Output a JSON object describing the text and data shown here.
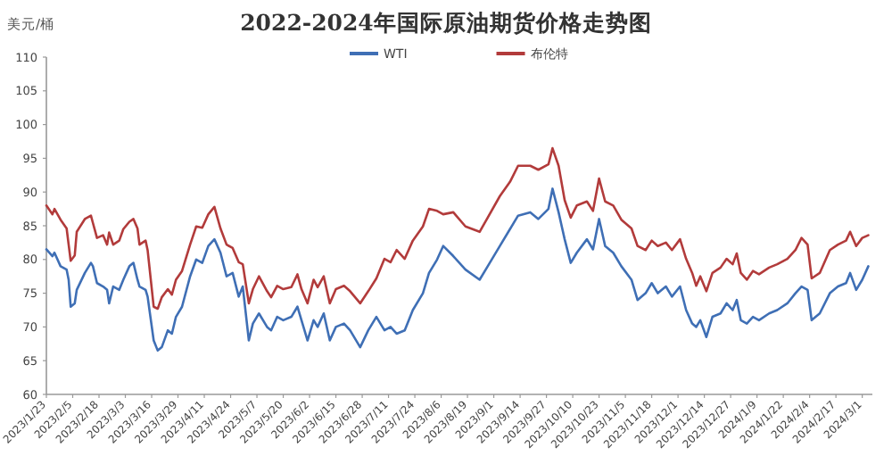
{
  "chart_data": {
    "type": "line",
    "title": "2022-2024年国际原油期货价格走势图",
    "ylabel": "美元/桶",
    "x": [
      "2023-01-23",
      "2023-01-26",
      "2023-01-27",
      "2023-01-30",
      "2023-02-02",
      "2023-02-03",
      "2023-02-04",
      "2023-02-06",
      "2023-02-07",
      "2023-02-11",
      "2023-02-14",
      "2023-02-15",
      "2023-02-17",
      "2023-02-20",
      "2023-02-22",
      "2023-02-23",
      "2023-02-25",
      "2023-02-28",
      "2023-03-02",
      "2023-03-05",
      "2023-03-07",
      "2023-03-09",
      "2023-03-10",
      "2023-03-13",
      "2023-03-14",
      "2023-03-17",
      "2023-03-19",
      "2023-03-21",
      "2023-03-24",
      "2023-03-26",
      "2023-03-28",
      "2023-03-31",
      "2023-04-04",
      "2023-04-07",
      "2023-04-10",
      "2023-04-13",
      "2023-04-16",
      "2023-04-19",
      "2023-04-22",
      "2023-04-25",
      "2023-04-28",
      "2023-04-30",
      "2023-05-03",
      "2023-05-05",
      "2023-05-08",
      "2023-05-12",
      "2023-05-14",
      "2023-05-17",
      "2023-05-20",
      "2023-05-24",
      "2023-05-27",
      "2023-05-29",
      "2023-06-01",
      "2023-06-04",
      "2023-06-06",
      "2023-06-09",
      "2023-06-12",
      "2023-06-15",
      "2023-06-19",
      "2023-06-22",
      "2023-06-27",
      "2023-07-01",
      "2023-07-05",
      "2023-07-09",
      "2023-07-12",
      "2023-07-15",
      "2023-07-19",
      "2023-07-23",
      "2023-07-28",
      "2023-07-31",
      "2023-08-04",
      "2023-08-07",
      "2023-08-12",
      "2023-08-18",
      "2023-08-25",
      "2023-08-29",
      "2023-09-04",
      "2023-09-09",
      "2023-09-13",
      "2023-09-19",
      "2023-09-23",
      "2023-09-28",
      "2023-09-30",
      "2023-10-03",
      "2023-10-06",
      "2023-10-09",
      "2023-10-12",
      "2023-10-17",
      "2023-10-20",
      "2023-10-23",
      "2023-10-26",
      "2023-10-30",
      "2023-11-03",
      "2023-11-08",
      "2023-11-11",
      "2023-11-15",
      "2023-11-18",
      "2023-11-21",
      "2023-11-25",
      "2023-11-28",
      "2023-12-02",
      "2023-12-05",
      "2023-12-08",
      "2023-12-10",
      "2023-12-12",
      "2023-12-15",
      "2023-12-18",
      "2023-12-22",
      "2023-12-25",
      "2023-12-28",
      "2023-12-30",
      "2024-01-01",
      "2024-01-04",
      "2024-01-07",
      "2024-01-10",
      "2024-01-15",
      "2024-01-19",
      "2024-01-24",
      "2024-01-28",
      "2024-01-31",
      "2024-02-03",
      "2024-02-05",
      "2024-02-09",
      "2024-02-14",
      "2024-02-18",
      "2024-02-22",
      "2024-02-24",
      "2024-02-27",
      "2024-03-01",
      "2024-03-04"
    ],
    "series": [
      {
        "name": "WTI",
        "color": "#3f6fb5",
        "values": [
          81.5,
          80.5,
          81,
          79,
          78.5,
          77,
          73,
          73.5,
          75.5,
          78,
          79.5,
          79,
          76.5,
          76,
          75.5,
          73.5,
          76,
          75.5,
          77,
          79,
          79.5,
          77,
          76,
          75.5,
          74.5,
          68,
          66.5,
          67,
          69.5,
          69,
          71.5,
          73,
          77.5,
          80,
          79.5,
          82,
          83,
          81,
          77.5,
          78,
          74.5,
          76,
          68,
          70.5,
          72,
          70,
          69.5,
          71.5,
          71,
          71.5,
          73,
          71,
          68,
          71,
          70,
          72,
          68,
          70,
          70.5,
          69.5,
          67,
          69.5,
          71.5,
          69.5,
          70,
          69,
          69.5,
          72.5,
          75,
          78,
          80,
          82,
          80.5,
          78.5,
          77,
          79,
          82,
          84.5,
          86.5,
          87,
          86,
          87.5,
          90.5,
          87,
          83,
          79.5,
          81,
          83,
          81.5,
          86,
          82,
          81,
          79,
          77,
          74,
          75,
          76.5,
          75,
          76,
          74.5,
          76,
          72.5,
          70.5,
          70,
          71,
          68.5,
          71.5,
          72,
          73.5,
          72.5,
          74,
          71,
          70.5,
          71.5,
          71,
          72,
          72.5,
          73.5,
          75,
          76,
          75.5,
          71,
          72,
          75,
          76,
          76.5,
          78,
          75.5,
          77,
          79
        ]
      },
      {
        "name": "布伦特",
        "color": "#b23b3b",
        "values": [
          88,
          86.7,
          87.5,
          85.9,
          84.6,
          82.2,
          79.8,
          80.6,
          84.1,
          86,
          86.5,
          85.4,
          83.2,
          83.6,
          82.2,
          84,
          82.2,
          82.8,
          84.5,
          85.6,
          86,
          84.6,
          82.2,
          82.8,
          81.4,
          73,
          72.7,
          74.4,
          75.6,
          74.8,
          77,
          78.3,
          82.2,
          84.9,
          84.7,
          86.7,
          87.8,
          84.6,
          82.2,
          81.7,
          79.6,
          79.3,
          73.5,
          75.6,
          77.5,
          75.3,
          74.4,
          76.1,
          75.6,
          75.9,
          77.8,
          75.6,
          73.5,
          77,
          75.9,
          77.5,
          73.5,
          75.6,
          76.1,
          75.3,
          73.5,
          75.3,
          77.2,
          80.1,
          79.6,
          81.4,
          80.1,
          82.8,
          84.9,
          87.5,
          87.2,
          86.7,
          87,
          84.9,
          84.1,
          86.2,
          89.4,
          91.5,
          93.9,
          93.9,
          93.3,
          94.1,
          96.5,
          93.9,
          88.8,
          86.2,
          88,
          88.6,
          87.2,
          92,
          88.6,
          88,
          85.9,
          84.6,
          82,
          81.4,
          82.8,
          82,
          82.5,
          81.4,
          83,
          80.1,
          78,
          76.1,
          77.5,
          75.3,
          78,
          78.8,
          80.1,
          79.3,
          80.9,
          78,
          77,
          78.3,
          77.8,
          78.8,
          79.3,
          80.1,
          81.4,
          83.2,
          82.2,
          77.2,
          78,
          81.4,
          82.2,
          82.8,
          84.1,
          82,
          83.2,
          83.6
        ]
      }
    ],
    "xlim": [
      "2023-01-23",
      "2024-03-06"
    ],
    "xticks": [
      {
        "value": "2023-01-23",
        "label": "2023/1/23"
      },
      {
        "value": "2023-02-05",
        "label": "2023/2/5"
      },
      {
        "value": "2023-02-18",
        "label": "2023/2/18"
      },
      {
        "value": "2023-03-03",
        "label": "2023/3/3"
      },
      {
        "value": "2023-03-16",
        "label": "2023/3/16"
      },
      {
        "value": "2023-03-29",
        "label": "2023/3/29"
      },
      {
        "value": "2023-04-11",
        "label": "2023/4/11"
      },
      {
        "value": "2023-04-24",
        "label": "2023/4/24"
      },
      {
        "value": "2023-05-07",
        "label": "2023/5/7"
      },
      {
        "value": "2023-05-20",
        "label": "2023/5/20"
      },
      {
        "value": "2023-06-02",
        "label": "2023/6/2"
      },
      {
        "value": "2023-06-15",
        "label": "2023/6/15"
      },
      {
        "value": "2023-06-28",
        "label": "2023/6/28"
      },
      {
        "value": "2023-07-11",
        "label": "2023/7/11"
      },
      {
        "value": "2023-07-24",
        "label": "2023/7/24"
      },
      {
        "value": "2023-08-06",
        "label": "2023/8/6"
      },
      {
        "value": "2023-08-19",
        "label": "2023/8/19"
      },
      {
        "value": "2023-09-01",
        "label": "2023/9/1"
      },
      {
        "value": "2023-09-14",
        "label": "2023/9/14"
      },
      {
        "value": "2023-09-27",
        "label": "2023/9/27"
      },
      {
        "value": "2023-10-10",
        "label": "2023/10/10"
      },
      {
        "value": "2023-10-23",
        "label": "2023/10/23"
      },
      {
        "value": "2023-11-05",
        "label": "2023/11/5"
      },
      {
        "value": "2023-11-18",
        "label": "2023/11/18"
      },
      {
        "value": "2023-12-01",
        "label": "2023/12/1"
      },
      {
        "value": "2023-12-14",
        "label": "2023/12/14"
      },
      {
        "value": "2023-12-27",
        "label": "2023/12/27"
      },
      {
        "value": "2024-01-09",
        "label": "2024/1/9"
      },
      {
        "value": "2024-01-22",
        "label": "2024/1/22"
      },
      {
        "value": "2024-02-04",
        "label": "2024/2/4"
      },
      {
        "value": "2024-02-17",
        "label": "2024/2/17"
      },
      {
        "value": "2024-03-01",
        "label": "2024/3/1"
      }
    ],
    "ylim": [
      60,
      110
    ],
    "yticks": [
      60,
      65,
      70,
      75,
      80,
      85,
      90,
      95,
      100,
      105,
      110
    ],
    "legend": "top",
    "grid": false,
    "marker": "none",
    "line_style": "solid"
  }
}
